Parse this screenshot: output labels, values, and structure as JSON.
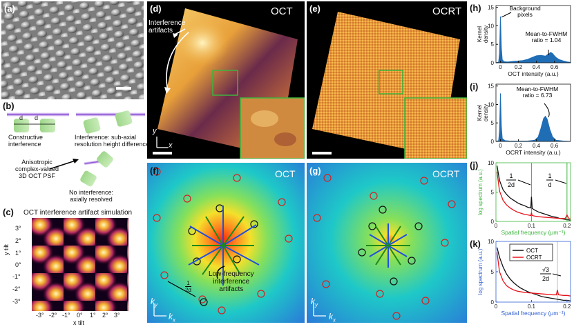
{
  "panels": {
    "a": "(a)",
    "b": "(b)",
    "c": "(c)",
    "d": "(d)",
    "e": "(e)",
    "f": "(f)",
    "g": "(g)",
    "h": "(h)",
    "i": "(i)",
    "j": "(j)",
    "k": "(k)"
  },
  "panel_b": {
    "d1": "d",
    "d2": "d",
    "constructive": "Constructive\ninterference",
    "interference_sub": "Interference: sub-axial\nresolution height difference",
    "psf": "Anisotropic\ncomplex-valued\n3D OCT PSF",
    "no_interference": "No interference:\naxially resolved"
  },
  "panel_c": {
    "title": "OCT interference artifact simulation",
    "xlabel": "x tilt",
    "ylabel": "y tilt",
    "xticks": [
      "-3°",
      "-2°",
      "-1°",
      "0°",
      "1°",
      "2°",
      "3°"
    ],
    "yticks": [
      "3°",
      "2°",
      "1°",
      "0°",
      "-1°",
      "-2°",
      "-3°"
    ]
  },
  "panel_d": {
    "tag": "OCT",
    "annotation": "Interference\nartifacts",
    "axis_y": "y",
    "axis_x": "x"
  },
  "panel_e": {
    "tag": "OCRT"
  },
  "panel_f": {
    "tag": "OCT",
    "ky": "k",
    "ky_sub": "y",
    "kx": "k",
    "kx_sub": "x",
    "half_num": "1",
    "half_den": "2d",
    "annotation": "Low-frequency\ninterference\nartifacts"
  },
  "panel_g": {
    "tag": "OCRT",
    "ky": "k",
    "ky_sub": "y",
    "kx": "k",
    "kx_sub": "x"
  },
  "colors": {
    "oct": "#111111",
    "ocrt": "#e8141b",
    "hist": "#1f6db5",
    "green": "#3cb53c",
    "blue_axis": "#3060d0"
  },
  "chart_data": [
    {
      "id": "h",
      "type": "area",
      "title": "",
      "xlabel": "OCT intensity (a.u.)",
      "ylabel": "Kernel\ndensity",
      "xticks": [
        "0",
        "0.2",
        "0.4",
        "0.6"
      ],
      "yticks": [
        "0",
        "5",
        "10",
        "15"
      ],
      "xlim": [
        -0.05,
        0.78
      ],
      "ylim": [
        0,
        15.5
      ],
      "x": [
        -0.05,
        -0.02,
        -0.01,
        0,
        0.01,
        0.02,
        0.04,
        0.08,
        0.15,
        0.2,
        0.25,
        0.3,
        0.35,
        0.4,
        0.45,
        0.48,
        0.5,
        0.53,
        0.56,
        0.58,
        0.6,
        0.62,
        0.65,
        0.7,
        0.75,
        0.78
      ],
      "y": [
        0,
        0.2,
        2.5,
        12.5,
        4,
        0.8,
        0.3,
        0.2,
        0.4,
        0.5,
        0.6,
        0.9,
        1.4,
        1.9,
        2.0,
        1.9,
        1.8,
        2.3,
        2.8,
        2.5,
        1.9,
        1.4,
        0.9,
        0.5,
        0.2,
        0.1
      ],
      "annotations": [
        "Background\npixels",
        "Mean-to-FWHM\nratio = 1.04"
      ]
    },
    {
      "id": "i",
      "type": "area",
      "title": "",
      "xlabel": "OCRT intensity (a.u.)",
      "ylabel": "Kernel\ndensity",
      "xticks": [
        "0",
        "0.2",
        "0.4",
        "0.6"
      ],
      "yticks": [
        "0",
        "5",
        "10",
        "15"
      ],
      "xlim": [
        -0.05,
        0.78
      ],
      "ylim": [
        0,
        15.5
      ],
      "x": [
        -0.05,
        -0.02,
        -0.01,
        0,
        0.01,
        0.02,
        0.05,
        0.1,
        0.2,
        0.3,
        0.38,
        0.42,
        0.45,
        0.48,
        0.5,
        0.52,
        0.55,
        0.58,
        0.62,
        0.7,
        0.78
      ],
      "y": [
        0,
        0.2,
        2.8,
        13,
        4,
        0.8,
        0.2,
        0.1,
        0.1,
        0.1,
        0.3,
        1.2,
        3.5,
        6.2,
        6.8,
        6.0,
        3.2,
        1.2,
        0.3,
        0.1,
        0
      ],
      "annotations": [
        "Mean-to-FWHM\nratio = 6.73"
      ]
    },
    {
      "id": "j",
      "type": "line",
      "xlabel": "Spatial frequency (μm⁻¹)",
      "ylabel": "log spectrum (a.u.)",
      "xticks": [
        "0",
        "0.1",
        "0.2"
      ],
      "yticks": [
        "0",
        "5",
        "10"
      ],
      "xlim": [
        0,
        0.21
      ],
      "ylim": [
        0,
        10
      ],
      "annotations": {
        "half_num": "1",
        "half_den": "2d",
        "full_num": "1",
        "full_den": "d"
      },
      "vlines": [
        0.1,
        0.2
      ],
      "series": [
        {
          "name": "OCT",
          "x": [
            0.003,
            0.01,
            0.02,
            0.03,
            0.04,
            0.05,
            0.06,
            0.07,
            0.08,
            0.09,
            0.098,
            0.1,
            0.102,
            0.11,
            0.12,
            0.13,
            0.14,
            0.15,
            0.16,
            0.17,
            0.18,
            0.19,
            0.2,
            0.21
          ],
          "y": [
            9.5,
            7.0,
            5.4,
            4.6,
            4.0,
            3.6,
            3.2,
            2.9,
            2.7,
            2.4,
            2.3,
            4.2,
            2.2,
            1.9,
            1.6,
            1.4,
            1.2,
            1.0,
            0.8,
            0.7,
            0.5,
            0.4,
            0.3,
            0.2
          ]
        },
        {
          "name": "OCRT",
          "x": [
            0.003,
            0.01,
            0.02,
            0.03,
            0.04,
            0.05,
            0.06,
            0.07,
            0.08,
            0.09,
            0.098,
            0.1,
            0.102,
            0.11,
            0.12,
            0.14,
            0.16,
            0.18,
            0.195,
            0.2,
            0.205,
            0.21
          ],
          "y": [
            8.5,
            5.2,
            3.6,
            2.8,
            2.3,
            1.9,
            1.6,
            1.4,
            1.2,
            1.1,
            1.0,
            1.5,
            1.0,
            0.9,
            0.8,
            0.7,
            0.6,
            0.5,
            0.5,
            1.1,
            0.5,
            0.4
          ]
        }
      ]
    },
    {
      "id": "k",
      "type": "line",
      "xlabel": "Spatial frequency (μm⁻¹)",
      "ylabel": "log spectrum (a.u.)",
      "xticks": [
        "0",
        "0.1",
        "0.2"
      ],
      "yticks": [
        "0",
        "5",
        "10"
      ],
      "xlim": [
        0,
        0.21
      ],
      "ylim": [
        0,
        10
      ],
      "annotations": {
        "sqrt_num": "√3",
        "sqrt_den": "2d"
      },
      "vlines": [
        0.173
      ],
      "legend": [
        "OCT",
        "OCRT"
      ],
      "series": [
        {
          "name": "OCT",
          "x": [
            0.003,
            0.01,
            0.02,
            0.03,
            0.04,
            0.05,
            0.06,
            0.07,
            0.08,
            0.09,
            0.1,
            0.11,
            0.12,
            0.13,
            0.14,
            0.15,
            0.16,
            0.17,
            0.18,
            0.19,
            0.2,
            0.21
          ],
          "y": [
            9.0,
            7.4,
            5.8,
            4.6,
            3.8,
            3.2,
            2.7,
            2.3,
            2.0,
            1.7,
            1.5,
            1.3,
            1.1,
            0.9,
            0.8,
            0.7,
            0.6,
            0.5,
            0.4,
            0.3,
            0.3,
            0.2
          ]
        },
        {
          "name": "OCRT",
          "x": [
            0.003,
            0.01,
            0.02,
            0.03,
            0.04,
            0.05,
            0.06,
            0.08,
            0.1,
            0.12,
            0.14,
            0.16,
            0.17,
            0.173,
            0.176,
            0.19,
            0.2,
            0.21
          ],
          "y": [
            8.2,
            5.0,
            3.5,
            2.7,
            2.3,
            2.0,
            1.8,
            1.6,
            1.5,
            1.4,
            1.3,
            1.2,
            1.2,
            2.0,
            1.2,
            1.1,
            1.1,
            1.0
          ]
        }
      ]
    }
  ]
}
